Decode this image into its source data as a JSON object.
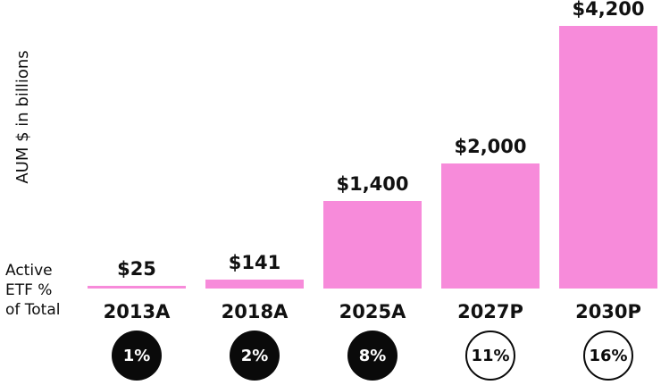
{
  "chart": {
    "bar_color": "#F78BDA",
    "filled_circle_color": "#0a0a0a",
    "text_color": "#111111"
  },
  "chart_data": {
    "type": "bar",
    "title": "",
    "xlabel": "",
    "ylabel": "AUM $ in billions",
    "ylim": [
      0,
      4200
    ],
    "grid": false,
    "categories": [
      "2013A",
      "2018A",
      "2025A",
      "2027P",
      "2030P"
    ],
    "values": [
      25,
      141,
      1400,
      2000,
      4200
    ],
    "value_labels": [
      "$25",
      "$141",
      "$1,400",
      "$2,000",
      "$4,200"
    ],
    "secondary_series": {
      "name": "Active ETF % of Total",
      "title_lines": [
        "Active",
        "ETF %",
        "of Total"
      ],
      "labels": [
        "1%",
        "2%",
        "8%",
        "11%",
        "16%"
      ],
      "values": [
        1,
        2,
        8,
        11,
        16
      ],
      "style": [
        "filled",
        "filled",
        "filled",
        "outline",
        "outline"
      ]
    }
  }
}
